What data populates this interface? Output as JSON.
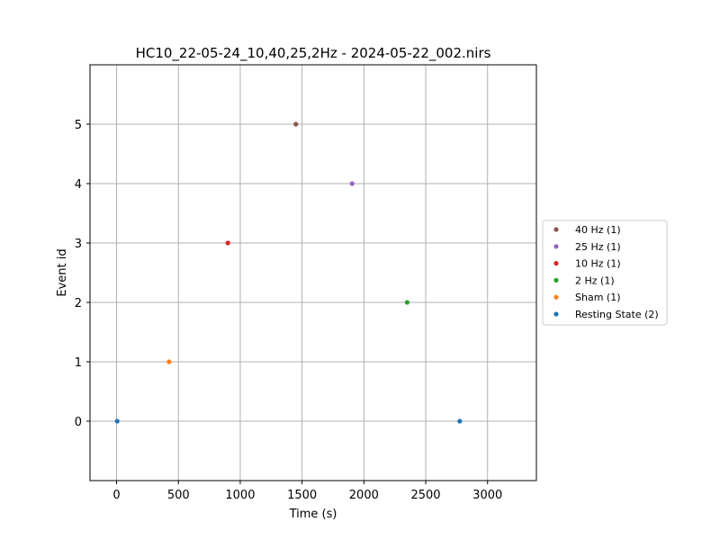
{
  "chart_data": {
    "type": "scatter",
    "title": "HC10_22-05-24_10,40,25,2Hz - 2024-05-22_002.nirs",
    "xlabel": "Time (s)",
    "ylabel": "Event id",
    "xlim": [
      -215,
      3395
    ],
    "ylim": [
      -1,
      6
    ],
    "xticks": [
      0,
      500,
      1000,
      1500,
      2000,
      2500,
      3000
    ],
    "yticks": [
      0,
      1,
      2,
      3,
      4,
      5
    ],
    "grid": true,
    "legend_position": "center-right-outside",
    "series": [
      {
        "name": "40 Hz (1)",
        "color": "#8c564b",
        "points": [
          [
            1450,
            5
          ]
        ]
      },
      {
        "name": "25 Hz (1)",
        "color": "#9467bd",
        "points": [
          [
            1905,
            4
          ]
        ]
      },
      {
        "name": "10 Hz (1)",
        "color": "#d62728",
        "points": [
          [
            900,
            3
          ]
        ]
      },
      {
        "name": "2 Hz (1)",
        "color": "#2ca02c",
        "points": [
          [
            2350,
            2
          ]
        ]
      },
      {
        "name": "Sham (1)",
        "color": "#ff7f0e",
        "points": [
          [
            425,
            1
          ]
        ]
      },
      {
        "name": "Resting State (2)",
        "color": "#1f77b4",
        "points": [
          [
            5,
            0
          ],
          [
            2775,
            0
          ]
        ]
      }
    ]
  }
}
